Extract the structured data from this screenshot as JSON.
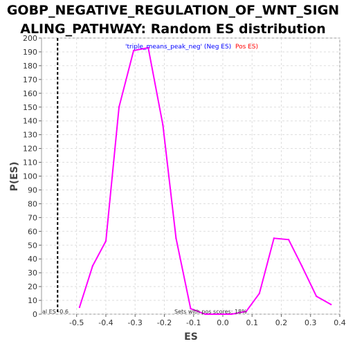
{
  "title_line1": "GOBP_NEGATIVE_REGULATION_OF_WNT_SIGN",
  "title_line2": "ALING_PATHWAY: Random ES distribution",
  "chart_data": {
    "type": "line",
    "xlabel": "ES",
    "ylabel": "P(ES)",
    "xlim": [
      -0.62,
      0.4
    ],
    "ylim": [
      0,
      200
    ],
    "x_ticks": [
      -0.5,
      -0.4,
      -0.3,
      -0.2,
      -0.1,
      0.0,
      0.1,
      0.2,
      0.3,
      0.4
    ],
    "x_tick_labels": [
      "-0.5",
      "-0.4",
      "-0.3",
      "-0.2",
      "-0.1",
      "0.0",
      "0.1",
      "0.2",
      "0.3",
      "0.4"
    ],
    "y_ticks": [
      0,
      10,
      20,
      30,
      40,
      50,
      60,
      70,
      80,
      90,
      100,
      110,
      120,
      130,
      140,
      150,
      160,
      170,
      180,
      190,
      200
    ],
    "grid": true,
    "series": [
      {
        "name": "'triple_means_peak_neg' (Neg ES)",
        "color": "#ff00ff",
        "x": [
          -0.49,
          -0.445,
          -0.4,
          -0.355,
          -0.305,
          -0.255,
          -0.205,
          -0.16,
          -0.11,
          -0.06,
          -0.015,
          0.03,
          0.08,
          0.125,
          0.175,
          0.225,
          0.27,
          0.32,
          0.37
        ],
        "y": [
          5,
          35,
          53,
          150,
          191,
          193,
          137,
          55,
          4,
          0,
          0,
          0,
          2,
          15,
          55,
          54,
          35,
          13,
          7
        ]
      }
    ],
    "legend": {
      "position": "top-center",
      "neg_label": "'triple_means_peak_neg' (Neg ES)",
      "neg_color": "#0000ff",
      "pos_label": "Pos ES)",
      "pos_color": "#ff0000"
    },
    "real_es": {
      "x": -0.565,
      "label": "al ES -0.6"
    },
    "annotation": "Sets with pos scores: 18%"
  }
}
